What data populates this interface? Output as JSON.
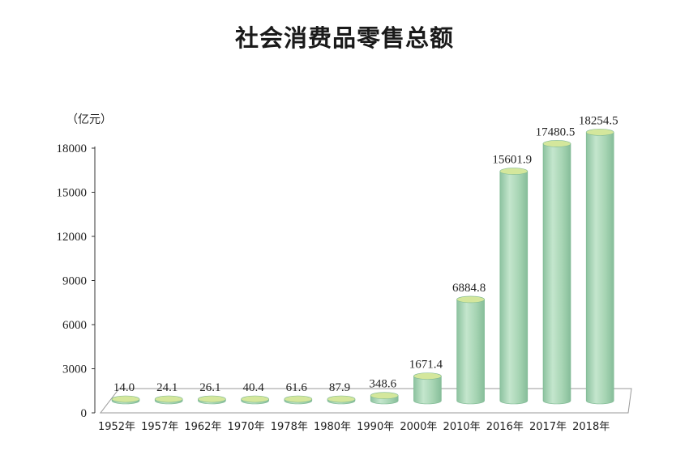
{
  "chart_data": {
    "type": "bar",
    "title": "社会消费品零售总额",
    "ylabel": "（亿元）",
    "xlabel": "",
    "ylim": [
      0,
      18000
    ],
    "yticks": [
      0,
      3000,
      6000,
      9000,
      12000,
      15000,
      18000
    ],
    "categories": [
      "1952年",
      "1957年",
      "1962年",
      "1970年",
      "1978年",
      "1980年",
      "1990年",
      "2000年",
      "2010年",
      "2016年",
      "2017年",
      "2018年"
    ],
    "values": [
      14.0,
      24.1,
      26.1,
      40.4,
      61.6,
      87.9,
      348.6,
      1671.4,
      6884.8,
      15601.9,
      17480.5,
      18254.5
    ],
    "value_labels": [
      "14.0",
      "24.1",
      "26.1",
      "40.4",
      "61.6",
      "87.9",
      "348.6",
      "1671.4",
      "6884.8",
      "15601.9",
      "17480.5",
      "18254.5"
    ],
    "grid": false,
    "legend": "none",
    "style": "3d-cylinder",
    "colors": {
      "bar_body": "#a8d5b5",
      "bar_top": "#d4e79c",
      "bar_outline": "#7db892",
      "floor": "#ffffff",
      "floor_outline": "#999999",
      "axis": "#333333"
    }
  }
}
